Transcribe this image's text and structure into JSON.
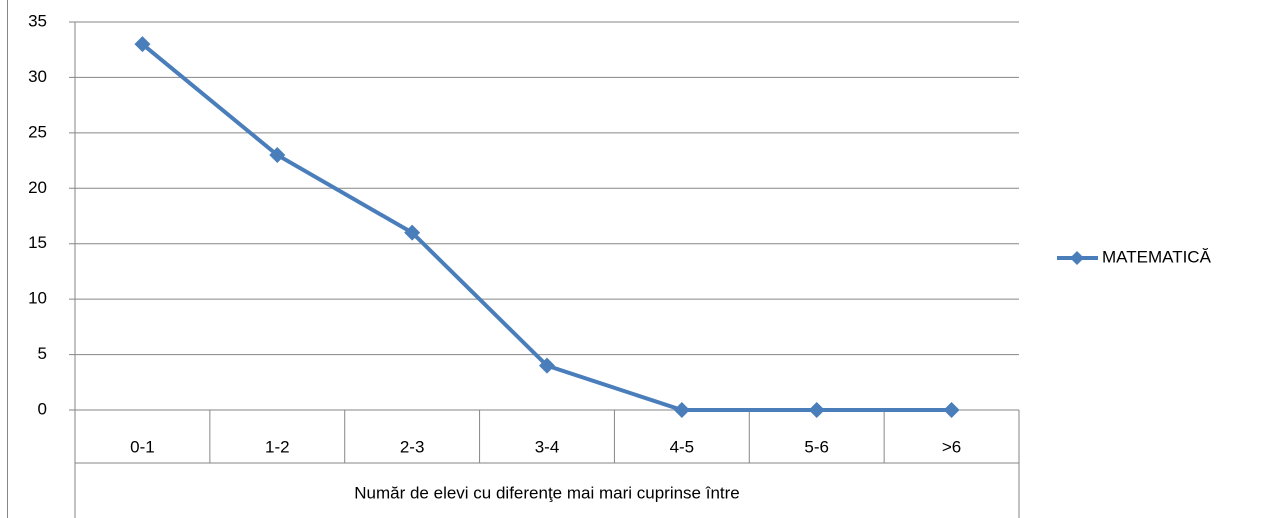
{
  "chart_data": {
    "type": "line",
    "categories": [
      "0-1",
      "1-2",
      "2-3",
      "3-4",
      "4-5",
      "5-6",
      ">6"
    ],
    "series": [
      {
        "name": "MATEMATICĂ",
        "color": "#4a7ebb",
        "values": [
          33,
          23,
          16,
          4,
          0,
          0,
          0
        ]
      }
    ],
    "x_label": "Număr de elevi cu diferenţe mai mari cuprinse între",
    "ylim": [
      0,
      35
    ],
    "yticks": [
      0,
      5,
      10,
      15,
      20,
      25,
      30,
      35
    ],
    "grid": true,
    "legend": "right"
  }
}
